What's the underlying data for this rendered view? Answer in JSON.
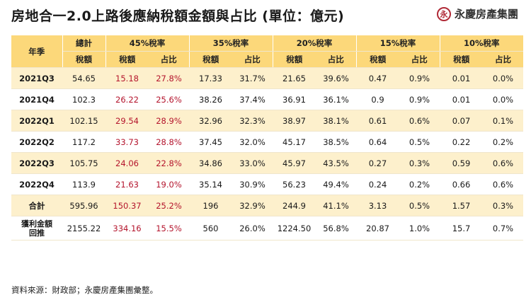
{
  "title": "房地合一2.0上路後應納稅額金額與占比 (單位：億元)",
  "brand": {
    "name": "永慶房產集團",
    "logo_letter": "永"
  },
  "table": {
    "corner_label": "年季",
    "groups": [
      "總計",
      "45%稅率",
      "35%稅率",
      "20%稅率",
      "15%稅率",
      "10%稅率"
    ],
    "sub_tax": "稅額",
    "sub_share": "占比",
    "rows": [
      {
        "label": "2021Q3",
        "total": "54.65",
        "r45_tax": "15.18",
        "r45_share": "27.8%",
        "r35_tax": "17.33",
        "r35_share": "31.7%",
        "r20_tax": "21.65",
        "r20_share": "39.6%",
        "r15_tax": "0.47",
        "r15_share": "0.9%",
        "r10_tax": "0.01",
        "r10_share": "0.0%"
      },
      {
        "label": "2021Q4",
        "total": "102.3",
        "r45_tax": "26.22",
        "r45_share": "25.6%",
        "r35_tax": "38.26",
        "r35_share": "37.4%",
        "r20_tax": "36.91",
        "r20_share": "36.1%",
        "r15_tax": "0.9",
        "r15_share": "0.9%",
        "r10_tax": "0.01",
        "r10_share": "0.0%"
      },
      {
        "label": "2022Q1",
        "total": "102.15",
        "r45_tax": "29.54",
        "r45_share": "28.9%",
        "r35_tax": "32.96",
        "r35_share": "32.3%",
        "r20_tax": "38.97",
        "r20_share": "38.1%",
        "r15_tax": "0.61",
        "r15_share": "0.6%",
        "r10_tax": "0.07",
        "r10_share": "0.1%"
      },
      {
        "label": "2022Q2",
        "total": "117.2",
        "r45_tax": "33.73",
        "r45_share": "28.8%",
        "r35_tax": "37.45",
        "r35_share": "32.0%",
        "r20_tax": "45.17",
        "r20_share": "38.5%",
        "r15_tax": "0.64",
        "r15_share": "0.5%",
        "r10_tax": "0.22",
        "r10_share": "0.2%"
      },
      {
        "label": "2022Q3",
        "total": "105.75",
        "r45_tax": "24.06",
        "r45_share": "22.8%",
        "r35_tax": "34.86",
        "r35_share": "33.0%",
        "r20_tax": "45.97",
        "r20_share": "43.5%",
        "r15_tax": "0.27",
        "r15_share": "0.3%",
        "r10_tax": "0.59",
        "r10_share": "0.6%"
      },
      {
        "label": "2022Q4",
        "total": "113.9",
        "r45_tax": "21.63",
        "r45_share": "19.0%",
        "r35_tax": "35.14",
        "r35_share": "30.9%",
        "r20_tax": "56.23",
        "r20_share": "49.4%",
        "r15_tax": "0.24",
        "r15_share": "0.2%",
        "r10_tax": "0.66",
        "r10_share": "0.6%"
      },
      {
        "label": "合計",
        "total": "595.96",
        "r45_tax": "150.37",
        "r45_share": "25.2%",
        "r35_tax": "196",
        "r35_share": "32.9%",
        "r20_tax": "244.9",
        "r20_share": "41.1%",
        "r15_tax": "3.13",
        "r15_share": "0.5%",
        "r10_tax": "1.57",
        "r10_share": "0.3%"
      }
    ],
    "last_row": {
      "label_line1": "獲利金額",
      "label_line2": "回推",
      "total": "2155.22",
      "r45_tax": "334.16",
      "r45_share": "15.5%",
      "r35_tax": "560",
      "r35_share": "26.0%",
      "r20_tax": "1224.50",
      "r20_share": "56.8%",
      "r15_tax": "20.87",
      "r15_share": "1.0%",
      "r10_tax": "15.7",
      "r10_share": "0.7%"
    }
  },
  "source_note": "資料來源：財政部；永慶房產集團彙整。",
  "colors": {
    "header_bg": "#fcd87a",
    "alt_row_bg": "#fdf0cc",
    "highlight_text": "#b4142c"
  }
}
